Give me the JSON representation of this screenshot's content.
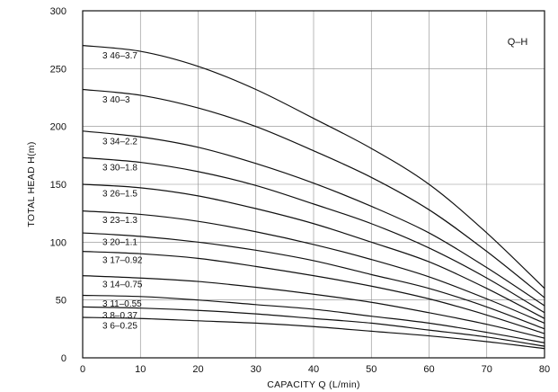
{
  "chart_data": {
    "type": "line",
    "title": "Q–H",
    "xlabel": "CAPACITY  Q (L/min)",
    "ylabel": "TOTAL HEAD  H(m)",
    "xlim": [
      0,
      80
    ],
    "ylim": [
      0,
      300
    ],
    "x_ticks": [
      0,
      10,
      20,
      30,
      40,
      50,
      60,
      70,
      80
    ],
    "y_ticks": [
      0,
      50,
      100,
      150,
      200,
      250,
      300
    ],
    "grid": true,
    "x": [
      0,
      10,
      20,
      30,
      40,
      50,
      60,
      70,
      80
    ],
    "series": [
      {
        "name": "3 46–3.7",
        "values": [
          270,
          265,
          252,
          232,
          207,
          181,
          150,
          108,
          60
        ]
      },
      {
        "name": "3 40–3",
        "values": [
          232,
          227,
          216,
          200,
          179,
          156,
          128,
          92,
          52
        ]
      },
      {
        "name": "3 34–2.2",
        "values": [
          196,
          191,
          182,
          168,
          151,
          131,
          108,
          78,
          45
        ]
      },
      {
        "name": "3 30–1.8",
        "values": [
          173,
          169,
          161,
          149,
          133,
          116,
          95,
          69,
          39
        ]
      },
      {
        "name": "3 26–1.5",
        "values": [
          150,
          147,
          140,
          129,
          116,
          100,
          83,
          60,
          34
        ]
      },
      {
        "name": "3 23–1.3",
        "values": [
          127,
          124,
          118,
          109,
          98,
          85,
          70,
          51,
          30
        ]
      },
      {
        "name": "3 20–1.1",
        "values": [
          108,
          105,
          100,
          93,
          84,
          72,
          60,
          44,
          25
        ]
      },
      {
        "name": "3 17–0.92",
        "values": [
          92,
          90,
          86,
          79,
          71,
          62,
          51,
          37,
          21
        ]
      },
      {
        "name": "3 14–0.75",
        "values": [
          71,
          69,
          66,
          61,
          55,
          48,
          39,
          29,
          17
        ]
      },
      {
        "name": "3 11–0.55",
        "values": [
          54,
          53,
          50,
          46,
          42,
          36,
          30,
          22,
          13
        ]
      },
      {
        "name": "3 8–0.37",
        "values": [
          44,
          43,
          41,
          38,
          34,
          30,
          24,
          18,
          10
        ]
      },
      {
        "name": "3 6–0.25",
        "values": [
          35,
          34,
          32,
          30,
          27,
          23,
          19,
          14,
          8
        ]
      }
    ]
  }
}
